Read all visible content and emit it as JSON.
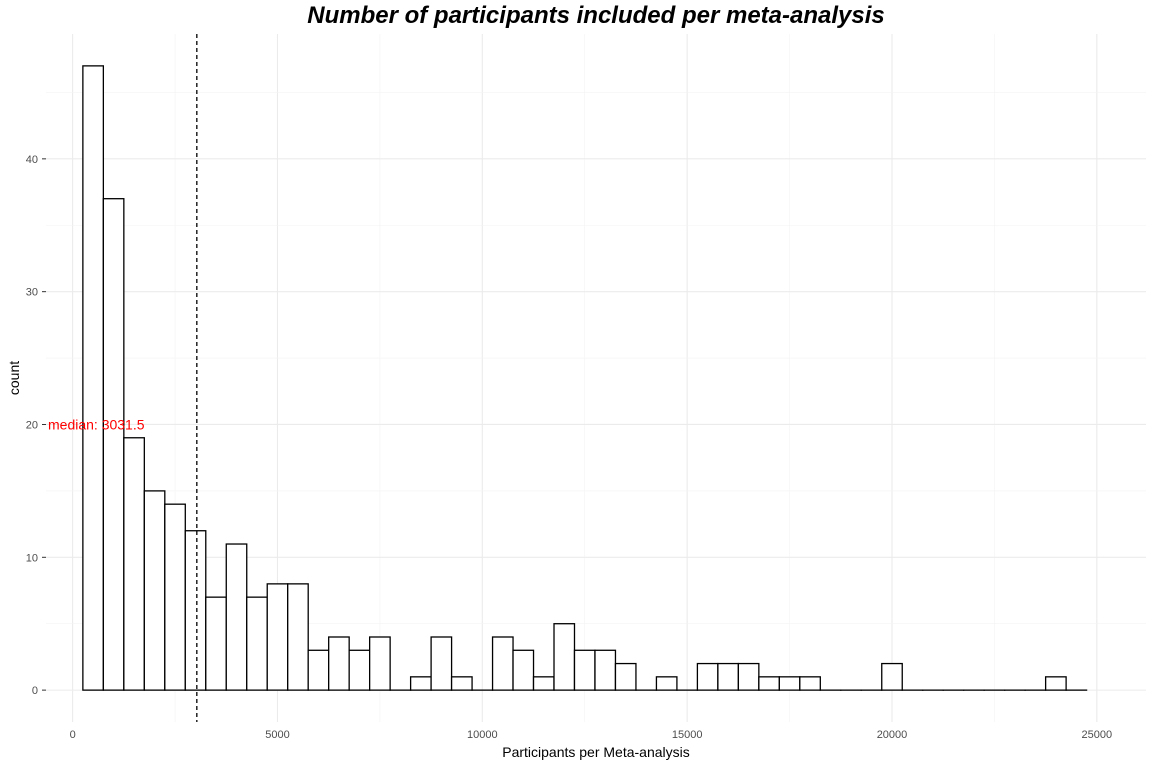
{
  "chart_data": {
    "type": "bar",
    "title": "Number of participants included per meta-analysis",
    "xlabel": "Participants per Meta-analysis",
    "ylabel": "count",
    "bin_width": 500,
    "bins": [
      {
        "x": 500,
        "count": 47
      },
      {
        "x": 1000,
        "count": 37
      },
      {
        "x": 1500,
        "count": 19
      },
      {
        "x": 2000,
        "count": 15
      },
      {
        "x": 2500,
        "count": 14
      },
      {
        "x": 3000,
        "count": 12
      },
      {
        "x": 3500,
        "count": 7
      },
      {
        "x": 4000,
        "count": 11
      },
      {
        "x": 4500,
        "count": 7
      },
      {
        "x": 5000,
        "count": 8
      },
      {
        "x": 5500,
        "count": 8
      },
      {
        "x": 6000,
        "count": 3
      },
      {
        "x": 6500,
        "count": 4
      },
      {
        "x": 7000,
        "count": 3
      },
      {
        "x": 7500,
        "count": 4
      },
      {
        "x": 8000,
        "count": 0
      },
      {
        "x": 8500,
        "count": 1
      },
      {
        "x": 9000,
        "count": 4
      },
      {
        "x": 9500,
        "count": 1
      },
      {
        "x": 10000,
        "count": 0
      },
      {
        "x": 10500,
        "count": 4
      },
      {
        "x": 11000,
        "count": 3
      },
      {
        "x": 11500,
        "count": 1
      },
      {
        "x": 12000,
        "count": 5
      },
      {
        "x": 12500,
        "count": 3
      },
      {
        "x": 13000,
        "count": 3
      },
      {
        "x": 13500,
        "count": 2
      },
      {
        "x": 14000,
        "count": 0
      },
      {
        "x": 14500,
        "count": 1
      },
      {
        "x": 15000,
        "count": 0
      },
      {
        "x": 15500,
        "count": 2
      },
      {
        "x": 16000,
        "count": 2
      },
      {
        "x": 16500,
        "count": 2
      },
      {
        "x": 17000,
        "count": 1
      },
      {
        "x": 17500,
        "count": 1
      },
      {
        "x": 18000,
        "count": 1
      },
      {
        "x": 18500,
        "count": 0
      },
      {
        "x": 19000,
        "count": 0
      },
      {
        "x": 19500,
        "count": 0
      },
      {
        "x": 20000,
        "count": 2
      },
      {
        "x": 20500,
        "count": 0
      },
      {
        "x": 21000,
        "count": 0
      },
      {
        "x": 21500,
        "count": 0
      },
      {
        "x": 22000,
        "count": 0
      },
      {
        "x": 22500,
        "count": 0
      },
      {
        "x": 23000,
        "count": 0
      },
      {
        "x": 23500,
        "count": 0
      },
      {
        "x": 24000,
        "count": 1
      },
      {
        "x": 24500,
        "count": 0
      }
    ],
    "xlim": [
      -650,
      26200
    ],
    "ylim": [
      -2.4,
      49.4
    ],
    "x_ticks": [
      0,
      5000,
      10000,
      15000,
      20000,
      25000
    ],
    "y_ticks": [
      0,
      10,
      20,
      30,
      40
    ],
    "median": 3031.5,
    "median_label": "median: 3031.5",
    "median_label_y": 20,
    "colors": {
      "bar_fill": "#ffffff",
      "bar_stroke": "#000000",
      "grid": "#ebebeb",
      "median_label": "#ff0000"
    },
    "grid": true,
    "legend": "none"
  }
}
